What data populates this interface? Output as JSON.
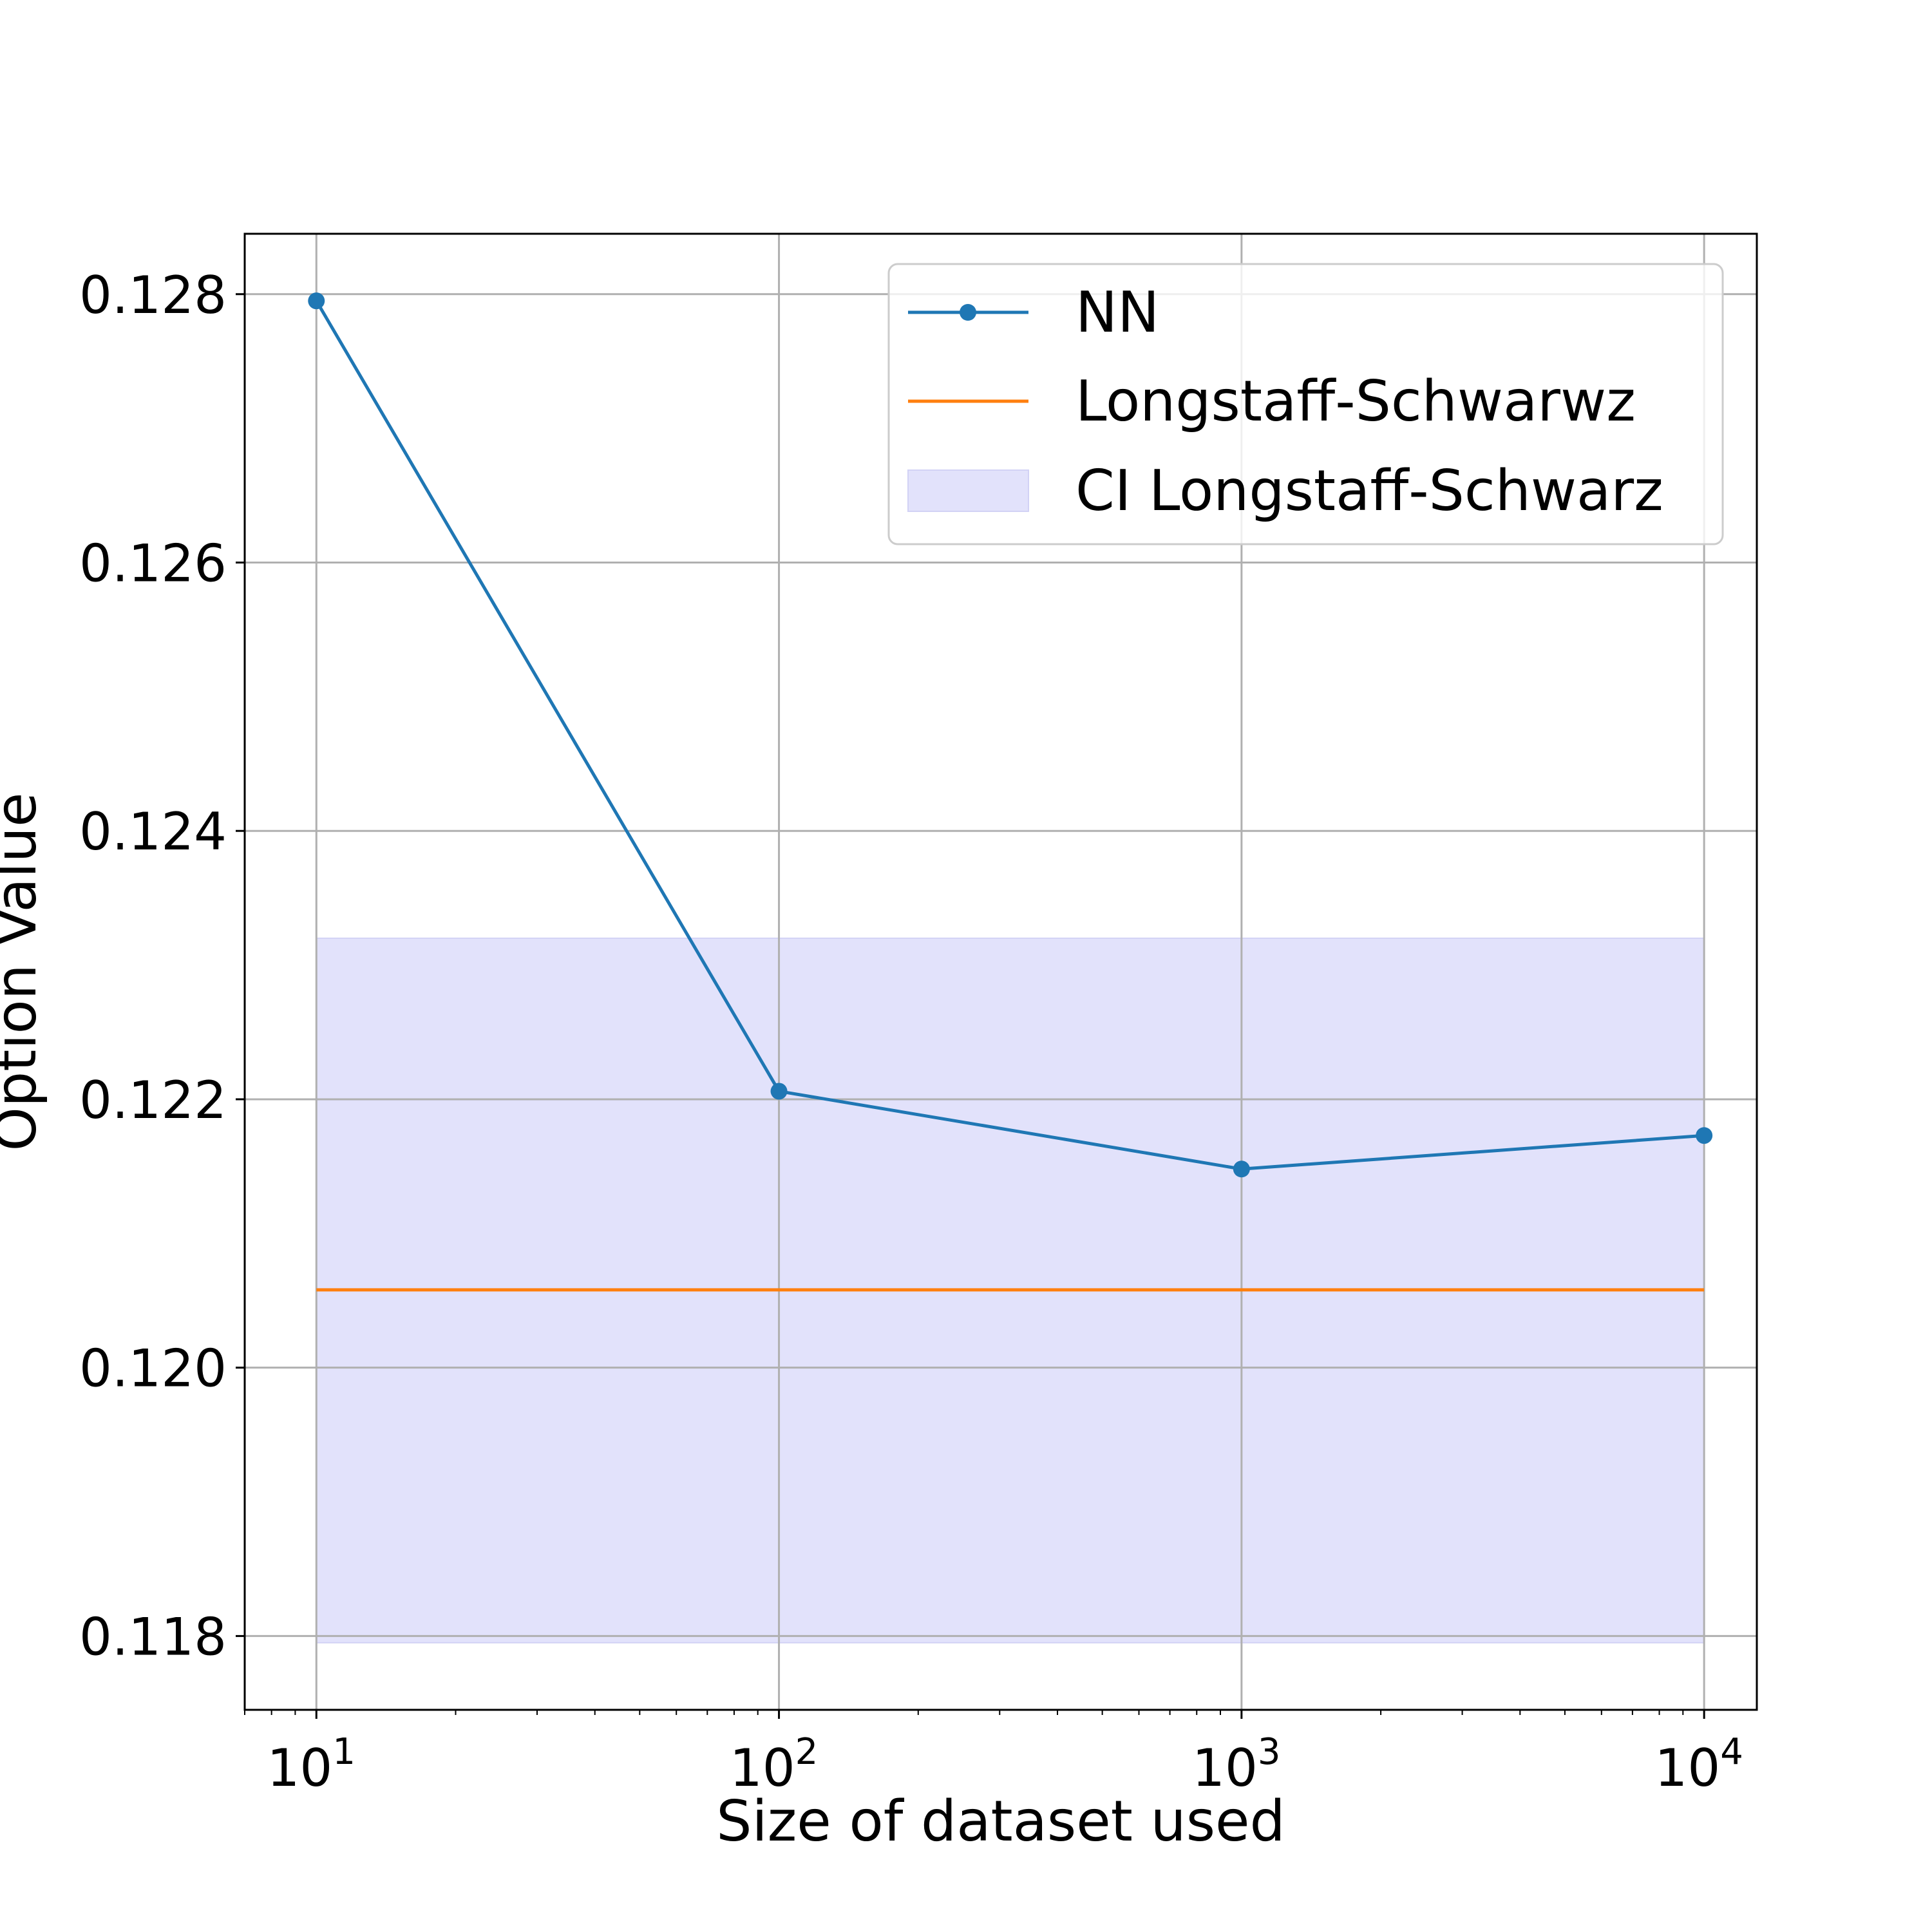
{
  "chart_data": {
    "type": "line",
    "title": "",
    "xlabel": "Size of dataset used",
    "ylabel": "Option Value",
    "x_scale": "log",
    "xlim": [
      7,
      13000
    ],
    "ylim": [
      0.11745,
      0.12845
    ],
    "x_ticks": [
      {
        "value": 10,
        "base": "10",
        "exp": "1"
      },
      {
        "value": 100,
        "base": "10",
        "exp": "2"
      },
      {
        "value": 1000,
        "base": "10",
        "exp": "3"
      },
      {
        "value": 10000,
        "base": "10",
        "exp": "4"
      }
    ],
    "y_ticks": [
      {
        "value": 0.118,
        "label": "0.118"
      },
      {
        "value": 0.12,
        "label": "0.120"
      },
      {
        "value": 0.122,
        "label": "0.122"
      },
      {
        "value": 0.124,
        "label": "0.124"
      },
      {
        "value": 0.126,
        "label": "0.126"
      },
      {
        "value": 0.128,
        "label": "0.128"
      }
    ],
    "grid": true,
    "legend_position": "top-right",
    "series": [
      {
        "name": "NN",
        "kind": "line-marker",
        "color": "#1f77b4",
        "x": [
          10,
          100,
          1000,
          10000
        ],
        "y": [
          0.12795,
          0.12206,
          0.12148,
          0.12173
        ]
      },
      {
        "name": "Longstaff-Schwarwz",
        "kind": "line",
        "color": "#ff7f0e",
        "x": [
          10,
          10000
        ],
        "y": [
          0.12058,
          0.12058
        ]
      },
      {
        "name": "CI Longstaff-Schwarz",
        "kind": "band",
        "color": "#e2e2fb",
        "x": [
          10,
          10000
        ],
        "y_low": 0.11795,
        "y_high": 0.1232
      }
    ]
  }
}
